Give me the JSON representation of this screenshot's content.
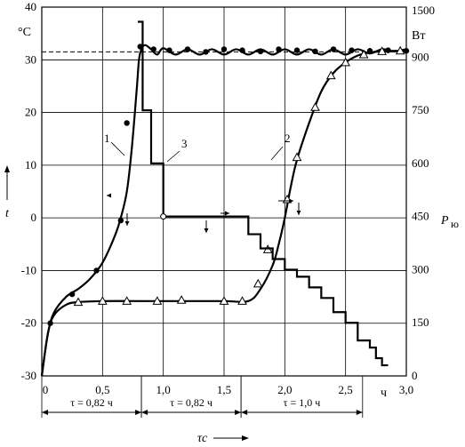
{
  "chart_data": {
    "type": "line",
    "x_axis": {
      "min": 0,
      "max": 3.0,
      "ticks": [
        0,
        0.5,
        1.0,
        1.5,
        2.0,
        2.5,
        3.0
      ],
      "tick_labels": [
        "0",
        "0,5",
        "1,0",
        "1,5",
        "2,0",
        "2,5",
        "3,0"
      ],
      "unit": "ч",
      "label": "τc"
    },
    "y_left": {
      "min": -30,
      "max": 40,
      "ticks": [
        -30,
        -20,
        -10,
        0,
        10,
        20,
        30,
        40
      ],
      "tick_labels": [
        "-30",
        "-20",
        "-10",
        "0",
        "10",
        "20",
        "30",
        "40"
      ],
      "unit": "°C",
      "label": "t"
    },
    "y_right": {
      "min": 0,
      "max": 1500,
      "ticks": [
        0,
        150,
        300,
        450,
        600,
        750,
        900,
        1500
      ],
      "tick_labels": [
        "0",
        "150",
        "300",
        "450",
        "600",
        "750",
        "900",
        "1500"
      ],
      "unit": "Вт",
      "label": "P",
      "label_sub": "ю"
    },
    "grid": true,
    "setpoint_line": 31.5,
    "curve_labels": [
      "1",
      "2",
      "3"
    ],
    "series": [
      {
        "name": "1",
        "axis": "left",
        "marker": "filled-circle",
        "x": [
          0,
          0.05,
          0.1,
          0.2,
          0.3,
          0.4,
          0.5,
          0.6,
          0.65,
          0.7,
          0.74,
          0.78,
          0.8,
          0.82,
          0.85,
          0.9,
          0.95,
          1.0,
          1.1,
          1.2,
          1.3,
          1.4,
          1.5,
          1.6,
          1.7,
          1.8,
          1.9,
          2.0,
          2.1,
          2.2,
          2.3,
          2.4,
          2.5,
          2.6,
          2.7,
          2.8,
          2.9,
          3.0
        ],
        "y": [
          -30,
          -22,
          -18,
          -15,
          -13.5,
          -11.5,
          -8.5,
          -3.5,
          0,
          5,
          13,
          24,
          30,
          32,
          32.8,
          32,
          31,
          32.2,
          31,
          32,
          31,
          32,
          31,
          32,
          31,
          32,
          31,
          32,
          31,
          32,
          31,
          32,
          31,
          32,
          31.2,
          32,
          31.6,
          32
        ],
        "markers_x": [
          0.07,
          0.25,
          0.45,
          0.65,
          0.7,
          0.81,
          0.92,
          1.05,
          1.2,
          1.35,
          1.5,
          1.65,
          1.8,
          1.95,
          2.1,
          2.25,
          2.4,
          2.55,
          2.7,
          2.85,
          3.0
        ],
        "markers_y": [
          -20,
          -14.5,
          -10,
          -0.5,
          18,
          32.5,
          32,
          31.8,
          32,
          31.5,
          32,
          31.8,
          31.6,
          32,
          31.8,
          31.6,
          32,
          31.8,
          31.7,
          31.8,
          31.7
        ]
      },
      {
        "name": "2",
        "axis": "left",
        "marker": "open-triangle",
        "x": [
          0,
          0.05,
          0.1,
          0.2,
          0.3,
          0.5,
          0.8,
          1.1,
          1.5,
          1.7,
          1.8,
          1.9,
          1.95,
          2.0,
          2.05,
          2.1,
          2.2,
          2.3,
          2.4,
          2.5,
          2.6,
          2.7,
          2.8,
          2.9,
          3.0
        ],
        "y": [
          -30,
          -22,
          -18.5,
          -16.5,
          -16,
          -15.8,
          -15.8,
          -15.8,
          -15.8,
          -15.8,
          -13.5,
          -9,
          -5,
          0,
          6,
          11,
          18,
          24,
          27.5,
          29.5,
          30.8,
          31.4,
          31.6,
          31.7,
          31.7
        ],
        "markers_x": [
          0.3,
          0.5,
          0.7,
          0.95,
          1.15,
          1.5,
          1.65,
          1.78,
          1.86,
          2.02,
          2.1,
          2.25,
          2.38,
          2.5,
          2.65,
          2.8,
          2.95
        ],
        "markers_y": [
          -16,
          -15.8,
          -15.8,
          -15.8,
          -15.6,
          -15.8,
          -15.8,
          -12.5,
          -6,
          3.5,
          11.5,
          21,
          27,
          29.5,
          31,
          31.6,
          31.7
        ]
      },
      {
        "name": "3",
        "axis": "right",
        "type": "step",
        "x": [
          0.79,
          0.83,
          0.83,
          0.9,
          0.9,
          1.0,
          1.0,
          1.6,
          1.6,
          1.7,
          1.7,
          1.8,
          1.8,
          1.9,
          1.9,
          2.0,
          2.0,
          2.1,
          2.1,
          2.2,
          2.2,
          2.3,
          2.3,
          2.4,
          2.4,
          2.5,
          2.5,
          2.6,
          2.6,
          2.7,
          2.7,
          2.75,
          2.75,
          2.8,
          2.8,
          2.85
        ],
        "y": [
          1000,
          1000,
          750,
          750,
          600,
          600,
          450,
          450,
          450,
          450,
          400,
          400,
          360,
          360,
          330,
          330,
          300,
          300,
          280,
          280,
          250,
          250,
          220,
          220,
          180,
          180,
          150,
          150,
          100,
          100,
          80,
          80,
          50,
          50,
          30,
          30
        ]
      }
    ],
    "annotations": [
      {
        "text": "τ = 0,82 ч",
        "x_from": 0,
        "x_to": 0.82
      },
      {
        "text": "τ = 0,82 ч",
        "x_from": 0.82,
        "x_to": 1.64
      },
      {
        "text": "τ = 1,0 ч",
        "x_from": 1.64,
        "x_to": 2.64
      }
    ]
  }
}
